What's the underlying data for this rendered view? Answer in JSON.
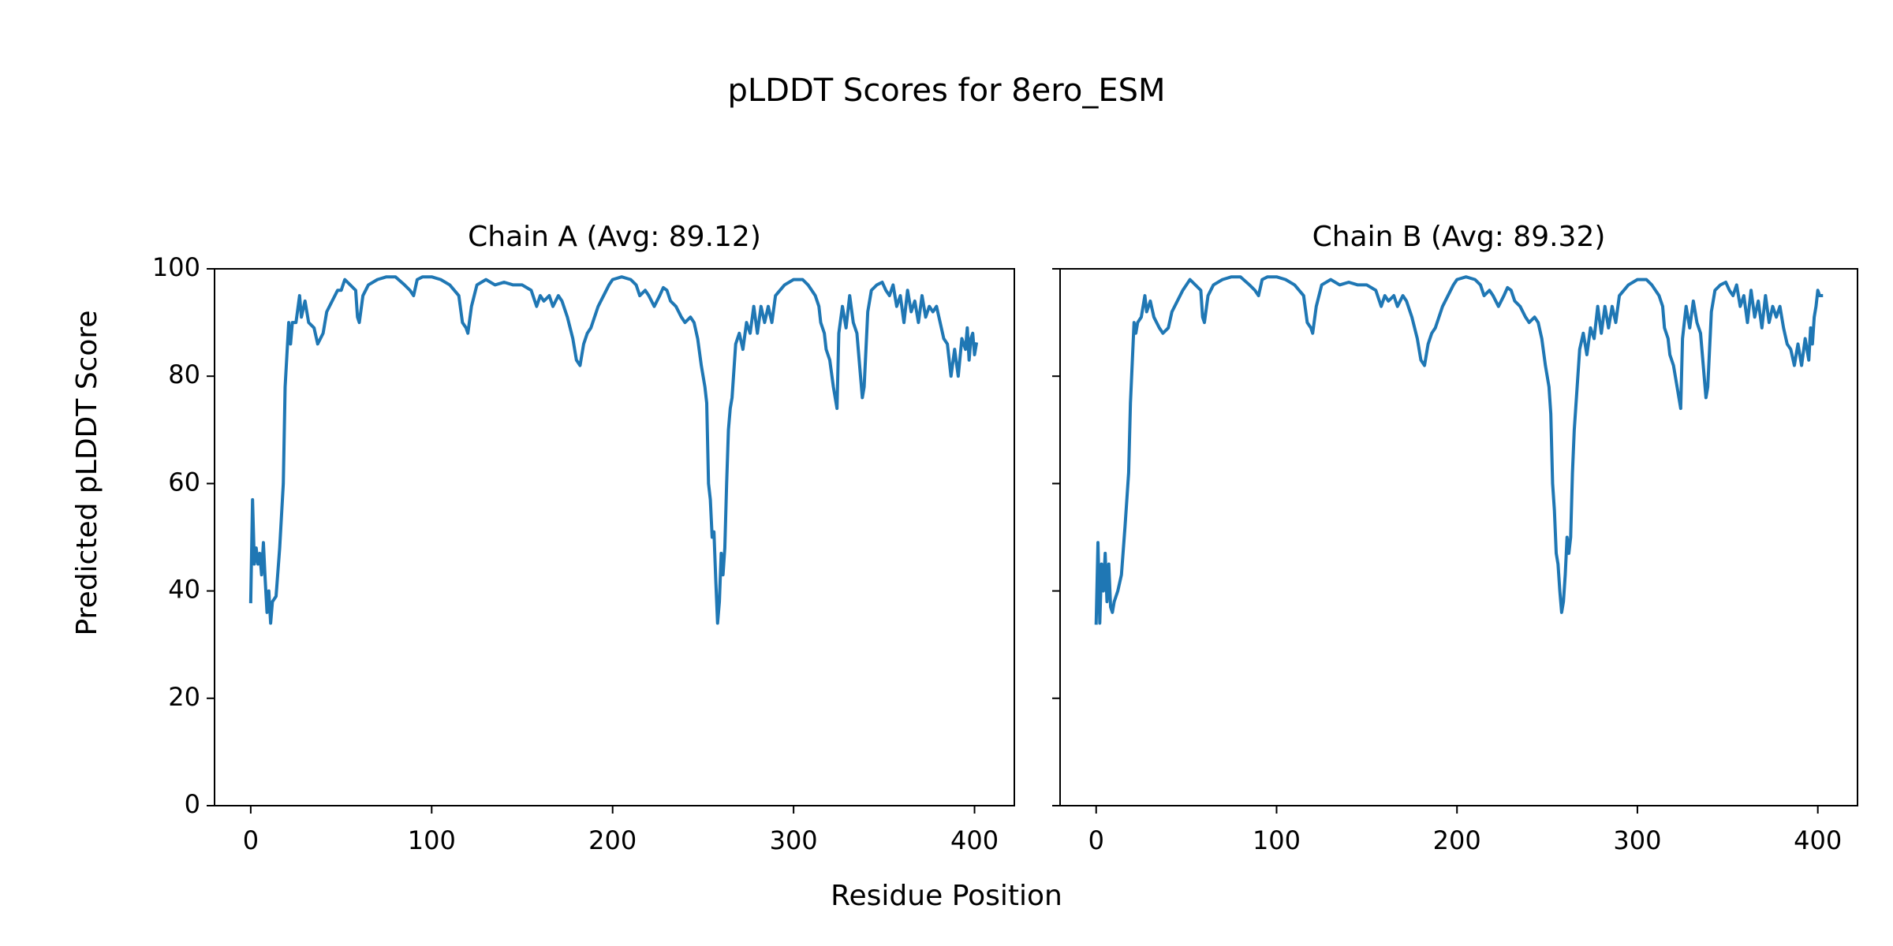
{
  "title": "pLDDT Scores for 8ero_ESM",
  "x_label": "Residue Position",
  "y_label": "Predicted pLDDT Score",
  "chart_data": [
    {
      "type": "line",
      "title": "Chain A (Avg: 89.12)",
      "color": "#1f77b4",
      "xlim": [
        -20,
        422
      ],
      "ylim": [
        0,
        100
      ],
      "xticks": [
        0,
        100,
        200,
        300,
        400
      ],
      "yticks": [
        0,
        20,
        40,
        60,
        80,
        100
      ],
      "x": [
        0,
        1,
        2,
        3,
        4,
        5,
        6,
        7,
        8,
        9,
        10,
        11,
        12,
        14,
        16,
        18,
        19,
        21,
        22,
        23,
        25,
        27,
        28,
        30,
        32,
        35,
        37,
        40,
        42,
        45,
        48,
        50,
        52,
        55,
        58,
        59,
        60,
        62,
        65,
        70,
        75,
        80,
        85,
        88,
        90,
        92,
        95,
        100,
        105,
        110,
        115,
        117,
        119,
        120,
        122,
        125,
        130,
        135,
        140,
        145,
        150,
        155,
        158,
        160,
        162,
        165,
        167,
        170,
        172,
        175,
        178,
        180,
        182,
        184,
        186,
        188,
        190,
        192,
        195,
        198,
        200,
        205,
        210,
        213,
        215,
        218,
        220,
        223,
        226,
        228,
        230,
        232,
        235,
        238,
        240,
        243,
        245,
        247,
        249,
        251,
        252,
        253,
        254,
        255,
        256,
        257,
        258,
        259,
        260,
        261,
        262,
        263,
        264,
        265,
        266,
        268,
        270,
        272,
        274,
        276,
        278,
        280,
        282,
        284,
        286,
        288,
        290,
        295,
        300,
        305,
        308,
        312,
        314,
        315,
        317,
        318,
        320,
        322,
        323,
        324,
        325,
        327,
        329,
        331,
        333,
        335,
        337,
        338,
        339,
        341,
        343,
        346,
        349,
        351,
        353,
        355,
        357,
        359,
        361,
        363,
        365,
        367,
        369,
        371,
        373,
        375,
        377,
        379,
        381,
        383,
        385,
        387,
        389,
        391,
        393,
        395,
        396,
        397,
        398,
        399,
        400,
        401
      ],
      "values": [
        38,
        57,
        45,
        48,
        45,
        47,
        43,
        49,
        42,
        36,
        40,
        34,
        38,
        39,
        48,
        60,
        78,
        90,
        86,
        90,
        90,
        95,
        91,
        94,
        90,
        89,
        86,
        88,
        92,
        94,
        96,
        96,
        98,
        97,
        96,
        91,
        90,
        95,
        97,
        98,
        98.5,
        98.5,
        97,
        96,
        95,
        98,
        98.5,
        98.5,
        98,
        97,
        95,
        90,
        89,
        88,
        93,
        97,
        98,
        97,
        97.5,
        97,
        97,
        96,
        93,
        95,
        94,
        95,
        93,
        95,
        94,
        91,
        87,
        83,
        82,
        86,
        88,
        89,
        91,
        93,
        95,
        97,
        98,
        98.5,
        98,
        97,
        95,
        96,
        95,
        93,
        95,
        96.5,
        96,
        94,
        93,
        91,
        90,
        91,
        90,
        87,
        82,
        78,
        75,
        60,
        57,
        50,
        51,
        42,
        34,
        38,
        47,
        43,
        48,
        60,
        70,
        74,
        76,
        86,
        88,
        85,
        90,
        88,
        93,
        88,
        93,
        90,
        93,
        90,
        95,
        97,
        98,
        98,
        97,
        95,
        93,
        90,
        88,
        85,
        83,
        78,
        76,
        74,
        88,
        93,
        89,
        95,
        90,
        88,
        80,
        76,
        78,
        92,
        96,
        97,
        97.5,
        96,
        95,
        97,
        93,
        95,
        90,
        96,
        92,
        94,
        90,
        95,
        91,
        93,
        92,
        93,
        90,
        87,
        86,
        80,
        85,
        80,
        87,
        85,
        89,
        83,
        87,
        88,
        84,
        86
      ]
    },
    {
      "type": "line",
      "title": "Chain B (Avg: 89.32)",
      "color": "#1f77b4",
      "xlim": [
        -20,
        422
      ],
      "ylim": [
        0,
        100
      ],
      "xticks": [
        0,
        100,
        200,
        300,
        400
      ],
      "yticks": [
        0,
        20,
        40,
        60,
        80,
        100
      ],
      "x": [
        0,
        1,
        2,
        3,
        4,
        5,
        6,
        7,
        8,
        9,
        10,
        12,
        14,
        16,
        18,
        19,
        21,
        22,
        23,
        25,
        27,
        28,
        30,
        32,
        35,
        37,
        40,
        42,
        45,
        48,
        50,
        52,
        55,
        58,
        59,
        60,
        62,
        65,
        70,
        75,
        80,
        85,
        88,
        90,
        92,
        95,
        100,
        105,
        110,
        115,
        117,
        119,
        120,
        122,
        125,
        130,
        135,
        140,
        145,
        150,
        155,
        158,
        160,
        162,
        165,
        167,
        170,
        172,
        175,
        178,
        180,
        182,
        184,
        186,
        188,
        190,
        192,
        195,
        198,
        200,
        205,
        210,
        213,
        215,
        218,
        220,
        223,
        226,
        228,
        230,
        232,
        235,
        238,
        240,
        243,
        245,
        247,
        249,
        251,
        252,
        253,
        254,
        255,
        256,
        257,
        258,
        259,
        260,
        261,
        262,
        263,
        264,
        265,
        266,
        268,
        270,
        272,
        274,
        276,
        278,
        280,
        282,
        284,
        286,
        288,
        290,
        295,
        300,
        305,
        308,
        312,
        314,
        315,
        317,
        318,
        320,
        322,
        323,
        324,
        325,
        327,
        329,
        331,
        333,
        335,
        337,
        338,
        339,
        341,
        343,
        346,
        349,
        351,
        353,
        355,
        357,
        359,
        361,
        363,
        365,
        367,
        369,
        371,
        373,
        375,
        377,
        379,
        381,
        383,
        385,
        387,
        389,
        391,
        393,
        395,
        396,
        397,
        398,
        399,
        400,
        401,
        402
      ],
      "values": [
        34,
        49,
        34,
        45,
        40,
        47,
        38,
        45,
        37,
        36,
        38,
        40,
        43,
        52,
        62,
        75,
        90,
        88,
        90,
        91,
        95,
        92,
        94,
        91,
        89,
        88,
        89,
        92,
        94,
        96,
        97,
        98,
        97,
        96,
        91,
        90,
        95,
        97,
        98,
        98.5,
        98.5,
        97,
        96,
        95,
        98,
        98.5,
        98.5,
        98,
        97,
        95,
        90,
        89,
        88,
        93,
        97,
        98,
        97,
        97.5,
        97,
        97,
        96,
        93,
        95,
        94,
        95,
        93,
        95,
        94,
        91,
        87,
        83,
        82,
        86,
        88,
        89,
        91,
        93,
        95,
        97,
        98,
        98.5,
        98,
        97,
        95,
        96,
        95,
        93,
        95,
        96.5,
        96,
        94,
        93,
        91,
        90,
        91,
        90,
        87,
        82,
        78,
        73,
        60,
        55,
        47,
        45,
        40,
        36,
        38,
        43,
        50,
        47,
        50,
        62,
        70,
        75,
        85,
        88,
        84,
        89,
        87,
        93,
        88,
        93,
        89,
        93,
        90,
        95,
        97,
        98,
        98,
        97,
        95,
        93,
        89,
        87,
        84,
        82,
        78,
        76,
        74,
        87,
        93,
        89,
        94,
        90,
        88,
        80,
        76,
        78,
        92,
        96,
        97,
        97.5,
        96,
        95,
        97,
        93,
        95,
        90,
        96,
        91,
        94,
        89,
        95,
        90,
        93,
        91,
        93,
        89,
        86,
        85,
        82,
        86,
        82,
        87,
        83,
        89,
        86,
        91,
        93,
        96,
        95,
        95
      ]
    }
  ]
}
